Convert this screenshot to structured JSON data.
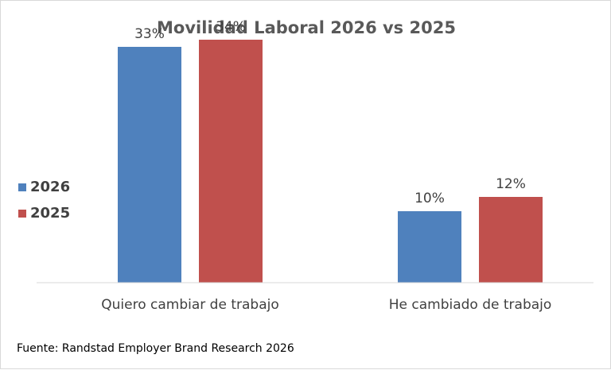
{
  "chart_data": {
    "type": "bar",
    "title": "Movilidad Laboral 2026 vs 2025",
    "categories": [
      "Quiero cambiar de trabajo",
      "He cambiado de trabajo"
    ],
    "series": [
      {
        "name": "2026",
        "values": [
          33,
          10
        ],
        "labels": [
          "33%",
          "10%"
        ],
        "color": "#4f81bd"
      },
      {
        "name": "2025",
        "values": [
          34,
          12
        ],
        "labels": [
          "34%",
          "12%"
        ],
        "color": "#c0504d"
      }
    ],
    "ylim": [
      0,
      35
    ],
    "grid": false,
    "legend": "left",
    "source": "Fuente: Randstad Employer Brand Research 2026"
  }
}
